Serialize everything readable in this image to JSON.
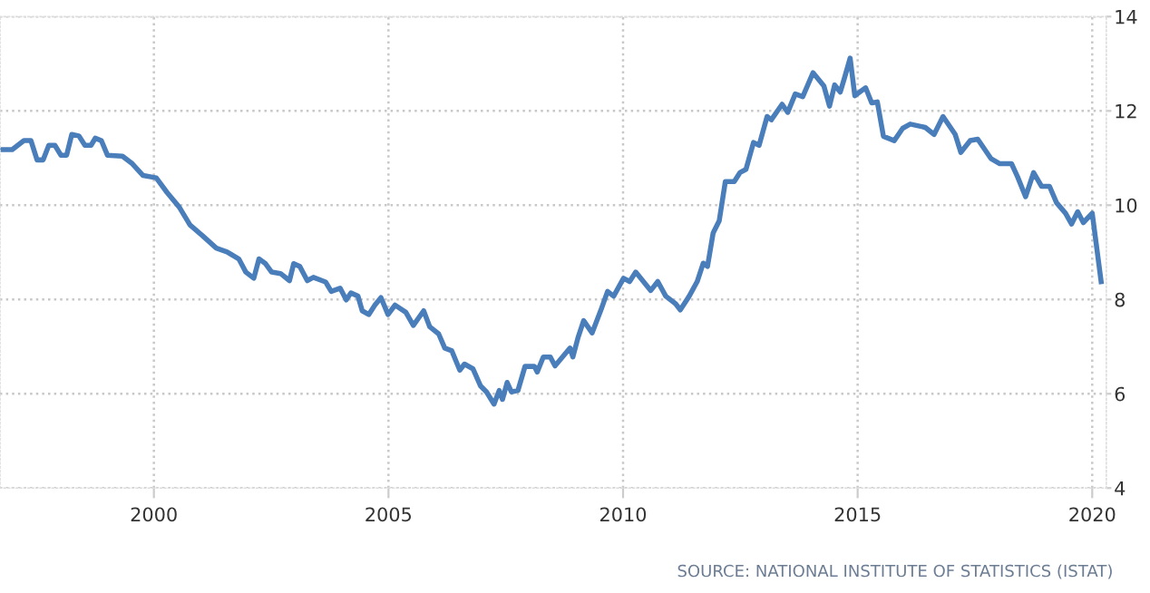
{
  "chart_data": {
    "type": "line",
    "x": [
      1996.72,
      1996.98,
      1997.23,
      1997.38,
      1997.51,
      1997.64,
      1997.76,
      1997.89,
      1998.02,
      1998.14,
      1998.25,
      1998.4,
      1998.53,
      1998.66,
      1998.75,
      1998.88,
      1999.01,
      1999.33,
      1999.54,
      1999.77,
      2000.05,
      2000.28,
      2000.54,
      2000.77,
      2001.04,
      2001.33,
      2001.56,
      2001.81,
      2001.96,
      2002.13,
      2002.24,
      2002.38,
      2002.51,
      2002.7,
      2002.89,
      2002.98,
      2003.11,
      2003.27,
      2003.4,
      2003.66,
      2003.78,
      2003.97,
      2004.1,
      2004.2,
      2004.35,
      2004.44,
      2004.58,
      2004.71,
      2004.84,
      2004.99,
      2005.14,
      2005.37,
      2005.53,
      2005.75,
      2005.88,
      2006.07,
      2006.2,
      2006.35,
      2006.52,
      2006.62,
      2006.8,
      2006.96,
      2007.09,
      2007.25,
      2007.36,
      2007.43,
      2007.53,
      2007.62,
      2007.76,
      2007.91,
      2008.11,
      2008.17,
      2008.3,
      2008.45,
      2008.55,
      2008.87,
      2008.93,
      2009.04,
      2009.16,
      2009.34,
      2009.54,
      2009.67,
      2009.8,
      2010.01,
      2010.14,
      2010.27,
      2010.59,
      2010.74,
      2010.91,
      2011.12,
      2011.22,
      2011.41,
      2011.58,
      2011.71,
      2011.8,
      2011.92,
      2012.05,
      2012.18,
      2012.37,
      2012.49,
      2012.62,
      2012.78,
      2012.9,
      2013.07,
      2013.16,
      2013.39,
      2013.51,
      2013.67,
      2013.83,
      2014.05,
      2014.28,
      2014.4,
      2014.51,
      2014.63,
      2014.72,
      2014.84,
      2014.94,
      2015.07,
      2015.17,
      2015.3,
      2015.42,
      2015.55,
      2015.78,
      2015.96,
      2016.12,
      2016.44,
      2016.63,
      2016.82,
      2017.08,
      2017.2,
      2017.4,
      2017.56,
      2017.84,
      2018.03,
      2018.28,
      2018.41,
      2018.58,
      2018.75,
      2018.92,
      2019.09,
      2019.24,
      2019.43,
      2019.56,
      2019.69,
      2019.81,
      2020.0,
      2020.19
    ],
    "series": [
      {
        "color": "#4a7ebb",
        "values": [
          11.18,
          11.18,
          11.37,
          11.37,
          10.96,
          10.96,
          11.27,
          11.27,
          11.06,
          11.06,
          11.5,
          11.47,
          11.27,
          11.27,
          11.42,
          11.37,
          11.06,
          11.04,
          10.88,
          10.63,
          10.58,
          10.27,
          9.96,
          9.58,
          9.35,
          9.09,
          9.01,
          8.86,
          8.58,
          8.45,
          8.86,
          8.76,
          8.58,
          8.55,
          8.4,
          8.76,
          8.7,
          8.4,
          8.47,
          8.37,
          8.17,
          8.24,
          7.99,
          8.14,
          8.07,
          7.76,
          7.68,
          7.88,
          8.04,
          7.68,
          7.88,
          7.73,
          7.45,
          7.76,
          7.42,
          7.27,
          6.97,
          6.91,
          6.5,
          6.63,
          6.53,
          6.17,
          6.04,
          5.78,
          6.07,
          5.88,
          6.24,
          6.04,
          6.07,
          6.58,
          6.58,
          6.46,
          6.78,
          6.78,
          6.59,
          6.97,
          6.78,
          7.19,
          7.55,
          7.29,
          7.81,
          8.17,
          8.07,
          8.45,
          8.38,
          8.58,
          8.19,
          8.38,
          8.07,
          7.91,
          7.78,
          8.07,
          8.38,
          8.77,
          8.7,
          9.41,
          9.67,
          10.5,
          10.5,
          10.69,
          10.76,
          11.33,
          11.27,
          11.88,
          11.81,
          12.14,
          11.97,
          12.36,
          12.3,
          12.81,
          12.53,
          12.1,
          12.55,
          12.4,
          12.7,
          13.12,
          12.32,
          12.42,
          12.49,
          12.17,
          12.19,
          11.46,
          11.37,
          11.63,
          11.72,
          11.65,
          11.5,
          11.88,
          11.5,
          11.12,
          11.37,
          11.4,
          10.99,
          10.88,
          10.88,
          10.6,
          10.18,
          10.69,
          10.4,
          10.4,
          10.05,
          9.83,
          9.6,
          9.86,
          9.63,
          9.83,
          8.38
        ]
      }
    ],
    "xlim": [
      1996.72,
      2020.3
    ],
    "ylim": [
      4,
      14
    ],
    "xticks": [
      2000,
      2005,
      2010,
      2015,
      2020
    ],
    "yticks": [
      4,
      6,
      8,
      10,
      12,
      14
    ],
    "grid": true,
    "line_style": "solid",
    "annotations": [
      "SOURCE: NATIONAL INSTITUTE OF STATISTICS (ISTAT)"
    ]
  }
}
